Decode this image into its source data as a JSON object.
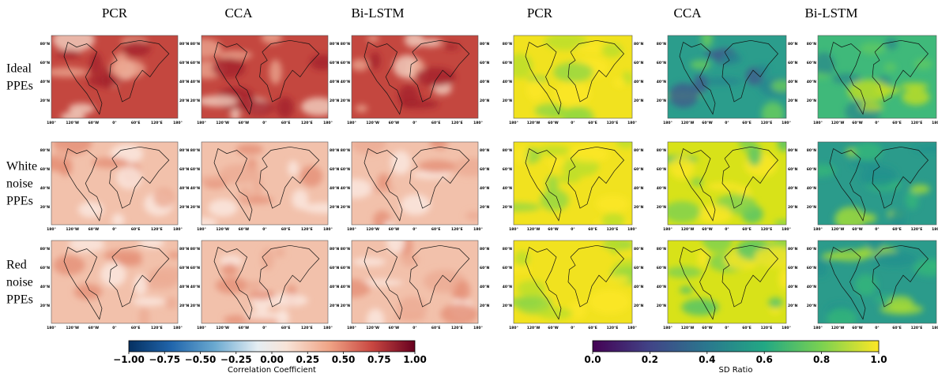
{
  "column_titles": [
    "PCR",
    "CCA",
    "Bi-LSTM",
    "PCR",
    "CCA",
    "Bi-LSTM"
  ],
  "row_labels": [
    [
      "Ideal",
      "PPEs"
    ],
    [
      "White",
      "noise",
      "PPEs"
    ],
    [
      "Red",
      "noise",
      "PPEs"
    ]
  ],
  "map_axes": {
    "lat_labels": [
      "80°N",
      "60°N",
      "40°N",
      "20°N"
    ],
    "lon_labels": [
      "180°",
      "120°W",
      "60°W",
      "0°",
      "60°E",
      "120°E",
      "180°"
    ]
  },
  "colorbars": [
    {
      "ticks": [
        "−1.00",
        "−0.75",
        "−0.50",
        "−0.25",
        "0.00",
        "0.25",
        "0.50",
        "0.75",
        "1.00"
      ],
      "label": "Correlation Coefficient"
    },
    {
      "ticks": [
        "0.0",
        "0.2",
        "0.4",
        "0.6",
        "0.8",
        "1.0"
      ],
      "label": "SD Ratio"
    }
  ]
}
